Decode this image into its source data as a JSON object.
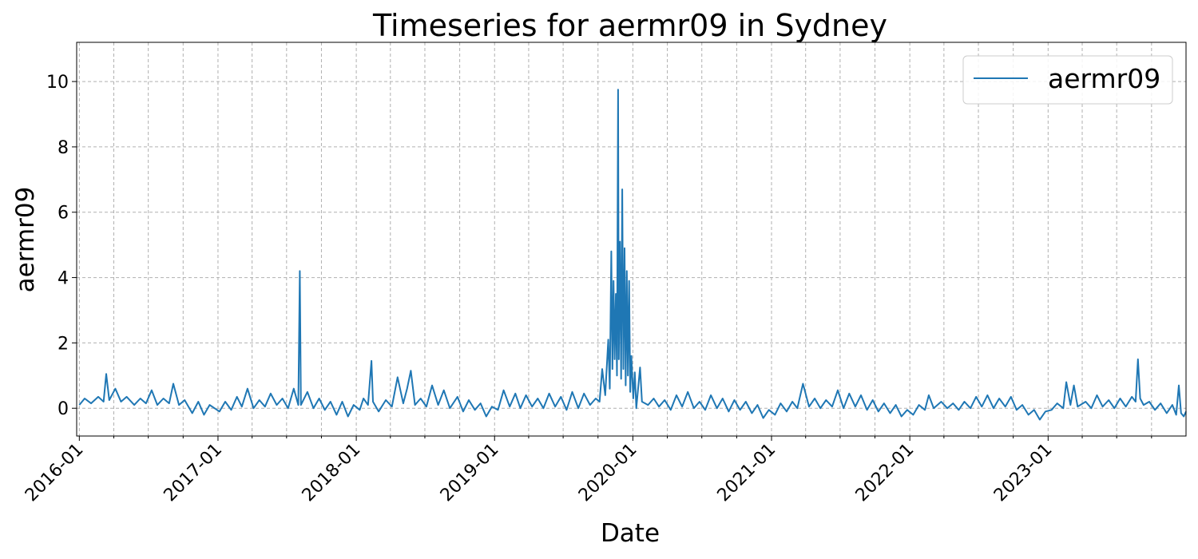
{
  "chart_data": {
    "type": "line",
    "title": "Timeseries for aermr09 in Sydney",
    "xlabel": "Date",
    "ylabel": "aermr09",
    "xlim": [
      "2015-12-25",
      "2023-12-31"
    ],
    "ylim": [
      -0.85,
      11.2
    ],
    "yticks": [
      0,
      2,
      4,
      6,
      8,
      10
    ],
    "xticks": [
      "2016-01",
      "2017-01",
      "2018-01",
      "2019-01",
      "2020-01",
      "2021-01",
      "2022-01",
      "2023-01"
    ],
    "grid": true,
    "legend_position": "top-right",
    "series": [
      {
        "name": "aermr09",
        "color": "#1f77b4",
        "points": [
          [
            "2016-01-01",
            0.1
          ],
          [
            "2016-01-15",
            0.3
          ],
          [
            "2016-02-01",
            0.15
          ],
          [
            "2016-02-20",
            0.35
          ],
          [
            "2016-03-05",
            0.2
          ],
          [
            "2016-03-12",
            1.05
          ],
          [
            "2016-03-20",
            0.25
          ],
          [
            "2016-04-05",
            0.6
          ],
          [
            "2016-04-20",
            0.2
          ],
          [
            "2016-05-05",
            0.35
          ],
          [
            "2016-05-25",
            0.1
          ],
          [
            "2016-06-10",
            0.3
          ],
          [
            "2016-06-25",
            0.15
          ],
          [
            "2016-07-10",
            0.55
          ],
          [
            "2016-07-25",
            0.1
          ],
          [
            "2016-08-10",
            0.3
          ],
          [
            "2016-08-25",
            0.15
          ],
          [
            "2016-09-05",
            0.75
          ],
          [
            "2016-09-20",
            0.1
          ],
          [
            "2016-10-05",
            0.25
          ],
          [
            "2016-10-25",
            -0.15
          ],
          [
            "2016-11-10",
            0.2
          ],
          [
            "2016-11-25",
            -0.2
          ],
          [
            "2016-12-10",
            0.1
          ],
          [
            "2017-01-05",
            -0.1
          ],
          [
            "2017-01-20",
            0.2
          ],
          [
            "2017-02-05",
            -0.05
          ],
          [
            "2017-02-20",
            0.35
          ],
          [
            "2017-03-05",
            0.05
          ],
          [
            "2017-03-20",
            0.6
          ],
          [
            "2017-04-05",
            0.0
          ],
          [
            "2017-04-20",
            0.25
          ],
          [
            "2017-05-05",
            0.05
          ],
          [
            "2017-05-20",
            0.45
          ],
          [
            "2017-06-05",
            0.1
          ],
          [
            "2017-06-20",
            0.3
          ],
          [
            "2017-07-05",
            0.0
          ],
          [
            "2017-07-20",
            0.6
          ],
          [
            "2017-08-01",
            0.1
          ],
          [
            "2017-08-05",
            4.2
          ],
          [
            "2017-08-08",
            0.1
          ],
          [
            "2017-08-25",
            0.5
          ],
          [
            "2017-09-10",
            0.0
          ],
          [
            "2017-09-25",
            0.3
          ],
          [
            "2017-10-10",
            -0.05
          ],
          [
            "2017-10-25",
            0.2
          ],
          [
            "2017-11-10",
            -0.2
          ],
          [
            "2017-11-25",
            0.2
          ],
          [
            "2017-12-10",
            -0.25
          ],
          [
            "2017-12-25",
            0.1
          ],
          [
            "2018-01-10",
            -0.05
          ],
          [
            "2018-01-20",
            0.3
          ],
          [
            "2018-02-01",
            0.1
          ],
          [
            "2018-02-10",
            1.45
          ],
          [
            "2018-02-14",
            0.2
          ],
          [
            "2018-03-01",
            -0.1
          ],
          [
            "2018-03-20",
            0.25
          ],
          [
            "2018-04-05",
            0.05
          ],
          [
            "2018-04-20",
            0.95
          ],
          [
            "2018-05-05",
            0.15
          ],
          [
            "2018-05-15",
            0.6
          ],
          [
            "2018-05-25",
            1.15
          ],
          [
            "2018-06-05",
            0.1
          ],
          [
            "2018-06-20",
            0.3
          ],
          [
            "2018-07-05",
            0.05
          ],
          [
            "2018-07-20",
            0.7
          ],
          [
            "2018-08-05",
            0.1
          ],
          [
            "2018-08-20",
            0.55
          ],
          [
            "2018-09-05",
            0.0
          ],
          [
            "2018-09-25",
            0.35
          ],
          [
            "2018-10-10",
            -0.1
          ],
          [
            "2018-10-25",
            0.25
          ],
          [
            "2018-11-10",
            -0.05
          ],
          [
            "2018-11-25",
            0.15
          ],
          [
            "2018-12-10",
            -0.25
          ],
          [
            "2018-12-25",
            0.05
          ],
          [
            "2019-01-10",
            -0.05
          ],
          [
            "2019-01-25",
            0.55
          ],
          [
            "2019-02-10",
            0.05
          ],
          [
            "2019-02-25",
            0.45
          ],
          [
            "2019-03-10",
            0.0
          ],
          [
            "2019-03-25",
            0.4
          ],
          [
            "2019-04-10",
            0.05
          ],
          [
            "2019-04-25",
            0.3
          ],
          [
            "2019-05-10",
            0.0
          ],
          [
            "2019-05-25",
            0.45
          ],
          [
            "2019-06-10",
            0.05
          ],
          [
            "2019-06-25",
            0.35
          ],
          [
            "2019-07-10",
            -0.05
          ],
          [
            "2019-07-25",
            0.5
          ],
          [
            "2019-08-10",
            0.0
          ],
          [
            "2019-08-25",
            0.45
          ],
          [
            "2019-09-10",
            0.1
          ],
          [
            "2019-09-25",
            0.3
          ],
          [
            "2019-10-05",
            0.2
          ],
          [
            "2019-10-12",
            1.2
          ],
          [
            "2019-10-20",
            0.4
          ],
          [
            "2019-10-28",
            2.1
          ],
          [
            "2019-11-01",
            0.6
          ],
          [
            "2019-11-05",
            4.8
          ],
          [
            "2019-11-08",
            1.2
          ],
          [
            "2019-11-11",
            3.9
          ],
          [
            "2019-11-14",
            1.5
          ],
          [
            "2019-11-17",
            3.5
          ],
          [
            "2019-11-20",
            1.0
          ],
          [
            "2019-11-23",
            9.75
          ],
          [
            "2019-11-25",
            1.5
          ],
          [
            "2019-11-28",
            5.1
          ],
          [
            "2019-12-01",
            0.9
          ],
          [
            "2019-12-04",
            6.7
          ],
          [
            "2019-12-07",
            1.2
          ],
          [
            "2019-12-10",
            4.9
          ],
          [
            "2019-12-13",
            0.7
          ],
          [
            "2019-12-16",
            4.2
          ],
          [
            "2019-12-19",
            1.0
          ],
          [
            "2019-12-22",
            3.9
          ],
          [
            "2019-12-25",
            0.5
          ],
          [
            "2019-12-28",
            1.6
          ],
          [
            "2020-01-02",
            0.3
          ],
          [
            "2020-01-06",
            1.1
          ],
          [
            "2020-01-10",
            0.0
          ],
          [
            "2020-01-20",
            1.25
          ],
          [
            "2020-01-25",
            0.2
          ],
          [
            "2020-02-10",
            0.1
          ],
          [
            "2020-02-25",
            0.3
          ],
          [
            "2020-03-10",
            0.05
          ],
          [
            "2020-03-25",
            0.25
          ],
          [
            "2020-04-10",
            -0.05
          ],
          [
            "2020-04-25",
            0.4
          ],
          [
            "2020-05-10",
            0.05
          ],
          [
            "2020-05-25",
            0.5
          ],
          [
            "2020-06-10",
            0.0
          ],
          [
            "2020-06-25",
            0.2
          ],
          [
            "2020-07-10",
            -0.05
          ],
          [
            "2020-07-25",
            0.4
          ],
          [
            "2020-08-10",
            0.0
          ],
          [
            "2020-08-25",
            0.3
          ],
          [
            "2020-09-10",
            -0.1
          ],
          [
            "2020-09-25",
            0.25
          ],
          [
            "2020-10-10",
            -0.05
          ],
          [
            "2020-10-25",
            0.2
          ],
          [
            "2020-11-10",
            -0.15
          ],
          [
            "2020-11-25",
            0.1
          ],
          [
            "2020-12-10",
            -0.3
          ],
          [
            "2020-12-25",
            -0.05
          ],
          [
            "2021-01-10",
            -0.2
          ],
          [
            "2021-01-25",
            0.15
          ],
          [
            "2021-02-10",
            -0.1
          ],
          [
            "2021-02-25",
            0.2
          ],
          [
            "2021-03-10",
            0.0
          ],
          [
            "2021-03-25",
            0.75
          ],
          [
            "2021-04-10",
            0.05
          ],
          [
            "2021-04-25",
            0.3
          ],
          [
            "2021-05-10",
            0.0
          ],
          [
            "2021-05-25",
            0.25
          ],
          [
            "2021-06-10",
            0.05
          ],
          [
            "2021-06-25",
            0.55
          ],
          [
            "2021-07-10",
            0.0
          ],
          [
            "2021-07-25",
            0.45
          ],
          [
            "2021-08-10",
            0.05
          ],
          [
            "2021-08-25",
            0.4
          ],
          [
            "2021-09-10",
            -0.05
          ],
          [
            "2021-09-25",
            0.25
          ],
          [
            "2021-10-10",
            -0.1
          ],
          [
            "2021-10-25",
            0.15
          ],
          [
            "2021-11-10",
            -0.15
          ],
          [
            "2021-11-25",
            0.1
          ],
          [
            "2021-12-10",
            -0.25
          ],
          [
            "2021-12-25",
            -0.05
          ],
          [
            "2022-01-10",
            -0.2
          ],
          [
            "2022-01-25",
            0.1
          ],
          [
            "2022-02-10",
            -0.05
          ],
          [
            "2022-02-20",
            0.4
          ],
          [
            "2022-03-05",
            0.0
          ],
          [
            "2022-03-25",
            0.2
          ],
          [
            "2022-04-10",
            0.0
          ],
          [
            "2022-04-25",
            0.15
          ],
          [
            "2022-05-10",
            -0.05
          ],
          [
            "2022-05-25",
            0.2
          ],
          [
            "2022-06-10",
            0.0
          ],
          [
            "2022-06-25",
            0.35
          ],
          [
            "2022-07-10",
            0.05
          ],
          [
            "2022-07-25",
            0.4
          ],
          [
            "2022-08-10",
            0.0
          ],
          [
            "2022-08-25",
            0.3
          ],
          [
            "2022-09-10",
            0.05
          ],
          [
            "2022-09-25",
            0.35
          ],
          [
            "2022-10-10",
            -0.05
          ],
          [
            "2022-10-25",
            0.1
          ],
          [
            "2022-11-10",
            -0.2
          ],
          [
            "2022-11-25",
            -0.05
          ],
          [
            "2022-12-10",
            -0.35
          ],
          [
            "2022-12-25",
            -0.1
          ],
          [
            "2023-01-10",
            -0.05
          ],
          [
            "2023-01-25",
            0.15
          ],
          [
            "2023-02-10",
            0.0
          ],
          [
            "2023-02-18",
            0.8
          ],
          [
            "2023-03-01",
            0.1
          ],
          [
            "2023-03-10",
            0.7
          ],
          [
            "2023-03-20",
            0.05
          ],
          [
            "2023-04-10",
            0.2
          ],
          [
            "2023-04-25",
            0.0
          ],
          [
            "2023-05-10",
            0.4
          ],
          [
            "2023-05-25",
            0.05
          ],
          [
            "2023-06-10",
            0.25
          ],
          [
            "2023-06-25",
            0.0
          ],
          [
            "2023-07-10",
            0.3
          ],
          [
            "2023-07-25",
            0.05
          ],
          [
            "2023-08-10",
            0.35
          ],
          [
            "2023-08-20",
            0.2
          ],
          [
            "2023-08-26",
            1.5
          ],
          [
            "2023-09-01",
            0.3
          ],
          [
            "2023-09-10",
            0.1
          ],
          [
            "2023-09-25",
            0.2
          ],
          [
            "2023-10-10",
            -0.05
          ],
          [
            "2023-10-25",
            0.15
          ],
          [
            "2023-11-10",
            -0.15
          ],
          [
            "2023-11-25",
            0.1
          ],
          [
            "2023-12-05",
            -0.2
          ],
          [
            "2023-12-12",
            0.7
          ],
          [
            "2023-12-18",
            -0.15
          ],
          [
            "2023-12-25",
            -0.25
          ],
          [
            "2023-12-31",
            -0.1
          ]
        ]
      }
    ]
  }
}
